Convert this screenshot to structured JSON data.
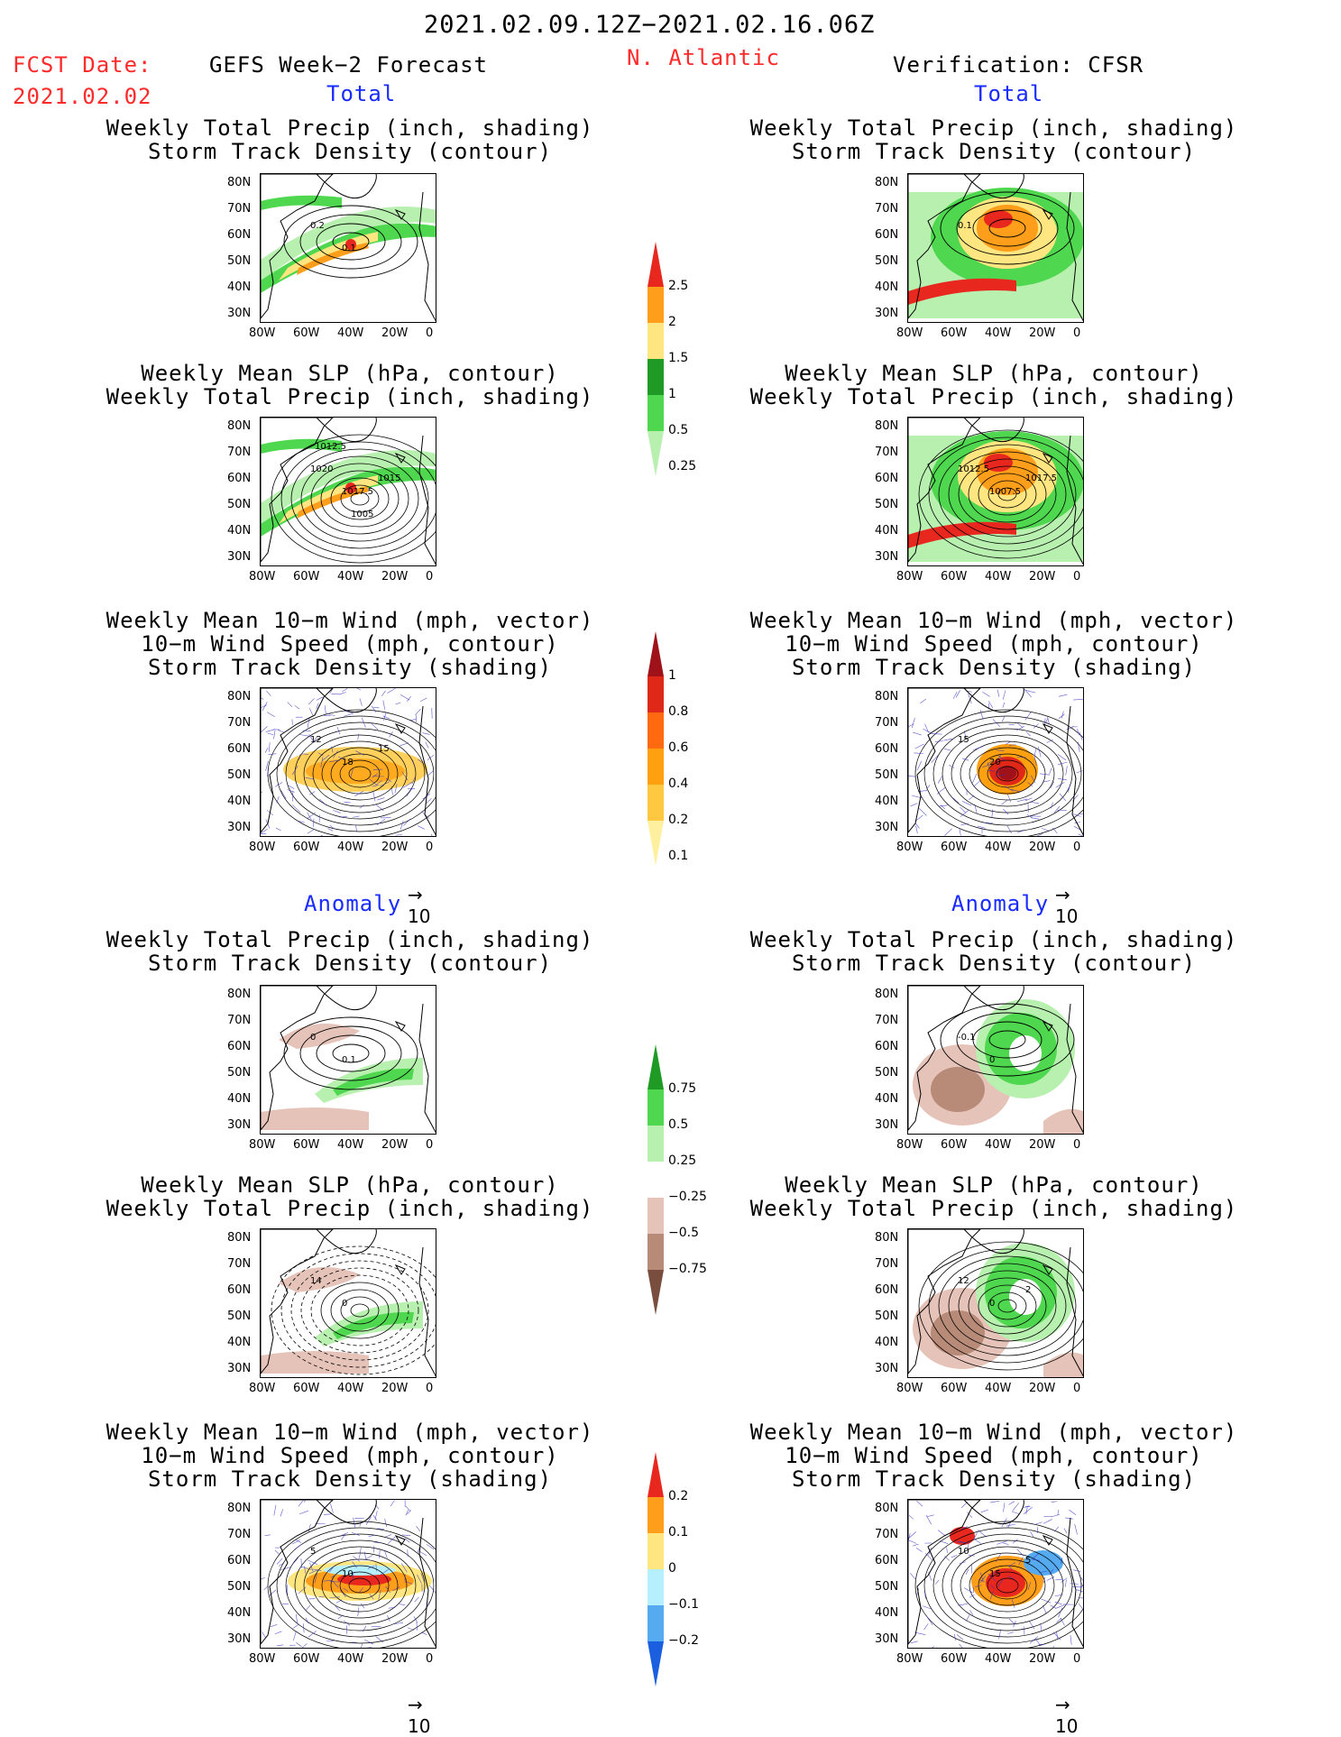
{
  "header": {
    "date_range": "2021.02.09.12Z−2021.02.16.06Z",
    "region": "N. Atlantic",
    "fcst_label": "FCST Date:",
    "fcst_date": "2021.02.02",
    "left_title": "GEFS Week−2 Forecast",
    "right_title": "Verification: CFSR"
  },
  "section_labels": {
    "total": "Total",
    "anomaly": "Anomaly"
  },
  "panel_titles": {
    "precip_storm": [
      "Weekly Total Precip (inch, shading)",
      "Storm Track Density (contour)"
    ],
    "slp_precip": [
      "Weekly Mean SLP (hPa, contour)",
      "Weekly Total Precip (inch, shading)"
    ],
    "wind_storm": [
      "Weekly Mean 10−m Wind (mph, vector)",
      "10−m Wind Speed (mph, contour)",
      "Storm Track Density (shading)"
    ]
  },
  "axes": {
    "lat_ticks": [
      "80N",
      "70N",
      "60N",
      "50N",
      "40N",
      "30N"
    ],
    "lon_ticks": [
      "80W",
      "60W",
      "40W",
      "20W",
      "0"
    ]
  },
  "vector_ref": "10",
  "colorbars": {
    "precip_total": {
      "labels": [
        "2.5",
        "2",
        "1.5",
        "1",
        "0.5",
        "0.25"
      ],
      "colors": [
        "#e8281f",
        "#ff9e1a",
        "#ffe680",
        "#1f9a25",
        "#4fd84f",
        "#b8f0b0"
      ]
    },
    "storm_total": {
      "labels": [
        "1",
        "0.8",
        "0.6",
        "0.4",
        "0.2",
        "0.1"
      ],
      "colors": [
        "#a0121a",
        "#e02818",
        "#ff6a10",
        "#ffa010",
        "#ffc840",
        "#fff0a0"
      ]
    },
    "precip_anom": {
      "labels": [
        "0.75",
        "0.5",
        "0.25",
        "−0.25",
        "−0.5",
        "−0.75"
      ],
      "colors": [
        "#1f9a25",
        "#4fd84f",
        "#b8f0b0",
        "#ffffff",
        "#e6c3b8",
        "#b88a78",
        "#7a4e3e"
      ]
    },
    "storm_anom": {
      "labels": [
        "0.2",
        "0.1",
        "0",
        "−0.1",
        "−0.2"
      ],
      "colors": [
        "#e8281f",
        "#ff9e1a",
        "#ffe680",
        "#b6f0ff",
        "#55aaf0",
        "#1a5fe0"
      ]
    }
  },
  "map_labels": {
    "gefs_total_precip": [
      "0.2",
      "0.1"
    ],
    "cfsr_total_precip": [
      "0.1"
    ],
    "gefs_total_slp": [
      "1020",
      "1017.5",
      "1015",
      "1012.5",
      "1005"
    ],
    "cfsr_total_slp": [
      "1012.5",
      "1007.5",
      "1017.5"
    ],
    "gefs_total_wind": [
      "12",
      "18",
      "15"
    ],
    "cfsr_total_wind": [
      "15",
      "20"
    ],
    "gefs_anom_precip": [
      "0",
      "0.1"
    ],
    "cfsr_anom_precip": [
      "-0.1",
      "0"
    ],
    "gefs_anom_slp": [
      "14",
      "0"
    ],
    "cfsr_anom_slp": [
      "12",
      "0",
      "2"
    ],
    "gefs_anom_wind": [
      "5",
      "10"
    ],
    "cfsr_anom_wind": [
      "10",
      "15",
      "5"
    ]
  },
  "colors": {
    "land_outline": "#000000",
    "wind_vector": "#3030c0",
    "red_text": "#ff2a2a",
    "blue_text": "#1a2cff"
  }
}
